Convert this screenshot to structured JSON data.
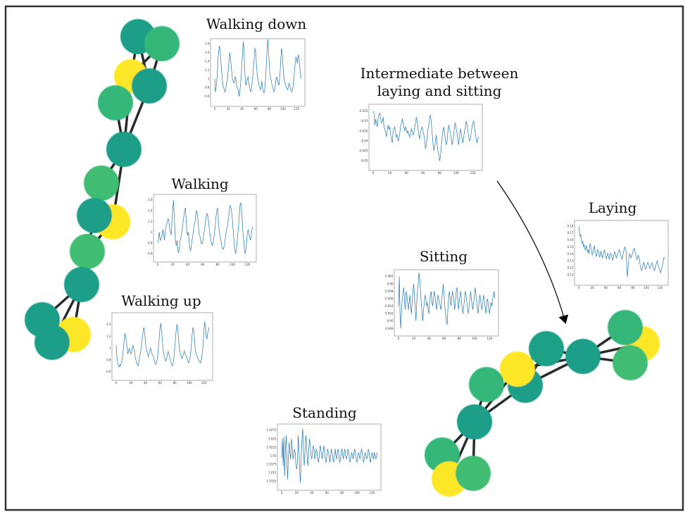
{
  "labels": {
    "walking_down": "Walking down",
    "walking": "Walking",
    "walking_up": "Walking up",
    "intermediate_1": "Intermediate between",
    "intermediate_2": "laying and sitting",
    "laying": "Laying",
    "sitting": "Sitting",
    "standing": "Standing"
  },
  "colors": {
    "frame": "#333333",
    "edge": "#2b2b2b",
    "series": "#1f77b4",
    "node_teal": "#1f9e89",
    "node_green": "#35b779",
    "node_light_green": "#3fbc73",
    "node_yellow": "#fde725"
  },
  "graphs": [
    {
      "name": "left-cluster",
      "nodes": [
        {
          "color": "yellow"
        },
        {
          "color": "teal"
        },
        {
          "color": "green"
        },
        {
          "color": "teal"
        },
        {
          "color": "green"
        },
        {
          "color": "teal"
        },
        {
          "color": "green"
        },
        {
          "color": "yellow"
        },
        {
          "color": "teal"
        },
        {
          "color": "green"
        },
        {
          "color": "teal"
        },
        {
          "color": "yellow"
        },
        {
          "color": "teal"
        },
        {
          "color": "teal"
        }
      ]
    },
    {
      "name": "right-cluster",
      "nodes": [
        {
          "color": "yellow"
        },
        {
          "color": "green"
        },
        {
          "color": "green"
        },
        {
          "color": "teal"
        },
        {
          "color": "teal"
        },
        {
          "color": "teal"
        },
        {
          "color": "yellow"
        },
        {
          "color": "green"
        },
        {
          "color": "teal"
        },
        {
          "color": "green"
        },
        {
          "color": "yellow"
        },
        {
          "color": "green"
        }
      ]
    }
  ],
  "chart_data": [
    {
      "type": "line",
      "name": "Walking down",
      "xticks": [
        0,
        20,
        40,
        60,
        80,
        100,
        120
      ],
      "yticks": [
        0.6,
        0.8,
        1.0,
        1.2,
        1.4,
        1.6,
        1.8
      ],
      "xlim": [
        0,
        128
      ],
      "ylim": [
        0.5,
        1.85
      ],
      "y": [
        1.0,
        0.7,
        0.8,
        0.95,
        1.2,
        1.5,
        1.65,
        1.75,
        1.6,
        1.4,
        1.2,
        1.0,
        0.85,
        0.8,
        0.75,
        0.7,
        0.75,
        0.85,
        0.95,
        1.05,
        1.25,
        1.45,
        1.6,
        1.5,
        1.3,
        1.15,
        1.0,
        0.95,
        0.9,
        0.95,
        1.05,
        1.0,
        0.85,
        0.8,
        0.78,
        0.65,
        0.6,
        0.75,
        0.9,
        1.1,
        1.4,
        1.65,
        1.85,
        1.6,
        1.2,
        0.9,
        0.85,
        0.95,
        1.0,
        1.05,
        0.9,
        0.8,
        0.75,
        0.7,
        0.8,
        0.95,
        1.1,
        1.3,
        1.5,
        1.7,
        1.6,
        1.35,
        1.15,
        1.0,
        0.95,
        0.85,
        0.8,
        0.75,
        0.82,
        0.95,
        0.8,
        0.72,
        0.68,
        0.7,
        0.9,
        1.15,
        1.45,
        1.75,
        1.9,
        1.6,
        1.3,
        1.1,
        1.0,
        0.95,
        0.85,
        0.8,
        0.75,
        0.7,
        0.78,
        0.88,
        1.0,
        1.05,
        0.95,
        0.9,
        0.85,
        1.0,
        1.2,
        1.5,
        1.7,
        1.55,
        1.3,
        1.1,
        0.95,
        0.9,
        0.85,
        0.8,
        0.78,
        0.75,
        0.82,
        0.9,
        0.85,
        0.78,
        0.72,
        0.7,
        0.75,
        0.85,
        1.0,
        1.2,
        1.35,
        1.5,
        1.45,
        1.35,
        1.5,
        1.55,
        1.4,
        1.2,
        1.05,
        1.0
      ]
    },
    {
      "type": "line",
      "name": "Walking",
      "xticks": [
        0,
        20,
        40,
        60,
        80,
        100,
        120
      ],
      "yticks": [
        0.6,
        0.8,
        1.0,
        1.2,
        1.4,
        1.6
      ],
      "xlim": [
        0,
        128
      ],
      "ylim": [
        0.55,
        1.65
      ],
      "y": [
        0.8,
        0.85,
        1.0,
        0.9,
        0.85,
        0.9,
        0.95,
        1.05,
        0.95,
        0.85,
        1.0,
        1.1,
        1.15,
        1.2,
        1.25,
        1.2,
        1.05,
        1.0,
        0.95,
        1.2,
        1.4,
        1.6,
        1.35,
        1.0,
        0.8,
        0.75,
        0.85,
        0.65,
        0.62,
        0.7,
        0.85,
        0.9,
        1.0,
        1.05,
        1.2,
        1.3,
        1.4,
        1.45,
        1.25,
        1.0,
        0.95,
        1.0,
        0.8,
        0.7,
        0.65,
        0.75,
        0.85,
        0.95,
        1.05,
        1.15,
        1.2,
        1.35,
        1.4,
        1.35,
        1.2,
        1.0,
        0.95,
        0.9,
        0.8,
        0.78,
        0.82,
        0.9,
        1.0,
        1.1,
        1.2,
        1.3,
        1.35,
        1.3,
        1.2,
        1.05,
        0.95,
        0.85,
        0.78,
        0.75,
        0.8,
        0.9,
        1.0,
        1.15,
        1.3,
        1.4,
        1.45,
        1.25,
        1.05,
        0.95,
        0.9,
        0.8,
        0.72,
        0.68,
        0.7,
        0.75,
        0.85,
        0.95,
        1.05,
        1.1,
        1.2,
        1.3,
        1.45,
        1.5,
        1.45,
        1.35,
        1.2,
        1.0,
        0.85,
        0.7,
        0.6,
        0.65,
        0.8,
        0.95,
        1.1,
        1.3,
        1.5,
        1.55,
        1.45,
        1.2,
        1.0,
        0.85,
        0.65,
        0.6,
        0.7,
        0.85,
        1.0,
        1.05,
        0.95,
        0.9,
        0.85,
        0.95,
        1.05,
        1.1
      ]
    },
    {
      "type": "line",
      "name": "Walking up",
      "xticks": [
        0,
        20,
        40,
        60,
        80,
        100,
        120
      ],
      "yticks": [
        0.6,
        0.8,
        1.0,
        1.2,
        1.4
      ],
      "xlim": [
        0,
        128
      ],
      "ylim": [
        0.55,
        1.55
      ],
      "y": [
        1.05,
        0.85,
        0.75,
        0.7,
        0.68,
        0.72,
        0.7,
        0.75,
        0.8,
        0.9,
        1.0,
        1.15,
        1.25,
        1.2,
        1.1,
        1.0,
        0.9,
        0.95,
        1.0,
        0.95,
        0.9,
        0.92,
        1.0,
        1.05,
        1.0,
        0.95,
        0.85,
        0.8,
        0.75,
        0.72,
        0.7,
        0.78,
        0.85,
        0.9,
        1.0,
        1.1,
        1.2,
        1.3,
        1.35,
        1.25,
        1.1,
        1.0,
        0.95,
        0.9,
        0.85,
        0.9,
        0.95,
        1.0,
        0.95,
        0.9,
        0.88,
        0.85,
        0.8,
        0.75,
        0.72,
        0.75,
        0.8,
        0.9,
        1.05,
        1.2,
        1.35,
        1.42,
        1.3,
        1.15,
        1.0,
        0.9,
        0.85,
        0.8,
        0.78,
        0.82,
        0.9,
        0.95,
        0.9,
        0.85,
        0.8,
        0.75,
        0.72,
        0.7,
        0.75,
        0.85,
        1.0,
        1.15,
        1.3,
        1.4,
        1.35,
        1.2,
        1.05,
        0.95,
        0.9,
        0.85,
        0.82,
        0.85,
        0.9,
        0.95,
        0.92,
        0.88,
        0.85,
        0.82,
        0.78,
        0.75,
        0.78,
        0.85,
        0.95,
        1.1,
        1.25,
        1.35,
        1.3,
        1.15,
        1.0,
        0.92,
        0.88,
        0.85,
        0.82,
        0.8,
        0.78,
        0.75,
        0.78,
        0.85,
        0.95,
        1.1,
        1.3,
        1.45,
        1.35,
        1.2,
        1.15,
        1.25,
        1.3,
        1.35
      ]
    },
    {
      "type": "line",
      "name": "Intermediate between laying and sitting",
      "xticks": [
        0,
        20,
        40,
        60,
        80,
        100,
        120
      ],
      "yticks": [
        -0.05,
        -0.045,
        -0.04,
        -0.035,
        -0.03,
        -0.025
      ],
      "xlim": [
        0,
        128
      ],
      "ylim": [
        -0.052,
        -0.023
      ],
      "y": [
        -0.025,
        -0.026,
        -0.032,
        -0.029,
        -0.031,
        -0.033,
        -0.028,
        -0.027,
        -0.026,
        -0.029,
        -0.031,
        -0.03,
        -0.028,
        -0.033,
        -0.034,
        -0.036,
        -0.038,
        -0.035,
        -0.032,
        -0.034,
        -0.033,
        -0.037,
        -0.039,
        -0.041,
        -0.035,
        -0.034,
        -0.033,
        -0.036,
        -0.038,
        -0.037,
        -0.04,
        -0.039,
        -0.036,
        -0.033,
        -0.031,
        -0.029,
        -0.03,
        -0.033,
        -0.035,
        -0.033,
        -0.034,
        -0.036,
        -0.035,
        -0.037,
        -0.038,
        -0.036,
        -0.034,
        -0.035,
        -0.037,
        -0.036,
        -0.033,
        -0.031,
        -0.028,
        -0.03,
        -0.034,
        -0.037,
        -0.039,
        -0.036,
        -0.034,
        -0.033,
        -0.035,
        -0.037,
        -0.04,
        -0.044,
        -0.042,
        -0.038,
        -0.034,
        -0.032,
        -0.028,
        -0.027,
        -0.031,
        -0.036,
        -0.041,
        -0.045,
        -0.043,
        -0.04,
        -0.037,
        -0.042,
        -0.045,
        -0.047,
        -0.05,
        -0.048,
        -0.043,
        -0.038,
        -0.035,
        -0.033,
        -0.036,
        -0.04,
        -0.042,
        -0.04,
        -0.035,
        -0.032,
        -0.034,
        -0.036,
        -0.039,
        -0.042,
        -0.04,
        -0.037,
        -0.032,
        -0.031,
        -0.034,
        -0.036,
        -0.04,
        -0.042,
        -0.037,
        -0.034,
        -0.036,
        -0.039,
        -0.041,
        -0.038,
        -0.035,
        -0.033,
        -0.03,
        -0.032,
        -0.035,
        -0.038,
        -0.04,
        -0.039,
        -0.036,
        -0.033,
        -0.031,
        -0.03,
        -0.033,
        -0.036,
        -0.039,
        -0.041,
        -0.039,
        -0.038
      ]
    },
    {
      "type": "line",
      "name": "Laying",
      "xticks": [
        0,
        20,
        40,
        60,
        80,
        100,
        120
      ],
      "yticks": [
        0.11,
        0.12,
        0.13,
        0.14,
        0.15,
        0.16,
        0.17,
        0.18
      ],
      "xlim": [
        0,
        128
      ],
      "ylim": [
        0.103,
        0.184
      ],
      "y": [
        0.18,
        0.172,
        0.165,
        0.168,
        0.16,
        0.155,
        0.158,
        0.15,
        0.153,
        0.148,
        0.145,
        0.152,
        0.149,
        0.143,
        0.146,
        0.14,
        0.15,
        0.155,
        0.148,
        0.144,
        0.138,
        0.142,
        0.147,
        0.152,
        0.145,
        0.14,
        0.136,
        0.141,
        0.146,
        0.144,
        0.139,
        0.135,
        0.14,
        0.144,
        0.138,
        0.134,
        0.137,
        0.142,
        0.146,
        0.141,
        0.136,
        0.133,
        0.138,
        0.141,
        0.136,
        0.132,
        0.137,
        0.141,
        0.139,
        0.135,
        0.131,
        0.134,
        0.139,
        0.143,
        0.14,
        0.136,
        0.134,
        0.138,
        0.141,
        0.144,
        0.146,
        0.142,
        0.138,
        0.135,
        0.132,
        0.137,
        0.142,
        0.146,
        0.15,
        0.148,
        0.143,
        0.12,
        0.107,
        0.12,
        0.135,
        0.14,
        0.138,
        0.134,
        0.136,
        0.14,
        0.143,
        0.145,
        0.148,
        0.144,
        0.14,
        0.136,
        0.132,
        0.134,
        0.138,
        0.135,
        0.13,
        0.122,
        0.118,
        0.116,
        0.12,
        0.125,
        0.128,
        0.124,
        0.12,
        0.118,
        0.121,
        0.125,
        0.128,
        0.126,
        0.122,
        0.119,
        0.121,
        0.124,
        0.127,
        0.125,
        0.122,
        0.118,
        0.116,
        0.12,
        0.124,
        0.127,
        0.13,
        0.126,
        0.122,
        0.119,
        0.115,
        0.113,
        0.117,
        0.121,
        0.125,
        0.13,
        0.135,
        0.133
      ]
    },
    {
      "type": "line",
      "name": "Sitting",
      "xticks": [
        0,
        20,
        40,
        60,
        80,
        100,
        120
      ],
      "yticks": [
        0.948,
        0.95,
        0.952,
        0.954,
        0.956,
        0.958,
        0.96,
        0.962
      ],
      "xlim": [
        0,
        128
      ],
      "ylim": [
        0.9475,
        0.963
      ],
      "y": [
        0.954,
        0.962,
        0.952,
        0.948,
        0.953,
        0.956,
        0.958,
        0.959,
        0.955,
        0.953,
        0.958,
        0.957,
        0.955,
        0.953,
        0.955,
        0.957,
        0.954,
        0.952,
        0.955,
        0.958,
        0.96,
        0.957,
        0.953,
        0.95,
        0.955,
        0.958,
        0.96,
        0.963,
        0.961,
        0.958,
        0.955,
        0.952,
        0.95,
        0.953,
        0.955,
        0.957,
        0.956,
        0.954,
        0.955,
        0.953,
        0.952,
        0.955,
        0.957,
        0.958,
        0.955,
        0.954,
        0.956,
        0.958,
        0.957,
        0.955,
        0.953,
        0.955,
        0.957,
        0.956,
        0.955,
        0.954,
        0.953,
        0.956,
        0.958,
        0.96,
        0.957,
        0.954,
        0.952,
        0.95,
        0.949,
        0.953,
        0.956,
        0.958,
        0.956,
        0.954,
        0.956,
        0.958,
        0.957,
        0.955,
        0.953,
        0.955,
        0.958,
        0.959,
        0.956,
        0.953,
        0.955,
        0.957,
        0.958,
        0.955,
        0.953,
        0.952,
        0.954,
        0.956,
        0.958,
        0.957,
        0.955,
        0.953,
        0.952,
        0.954,
        0.956,
        0.958,
        0.956,
        0.954,
        0.953,
        0.955,
        0.957,
        0.959,
        0.957,
        0.955,
        0.953,
        0.952,
        0.955,
        0.957,
        0.956,
        0.954,
        0.953,
        0.955,
        0.957,
        0.956,
        0.954,
        0.952,
        0.954,
        0.956,
        0.955,
        0.953,
        0.952,
        0.954,
        0.955,
        0.954,
        0.956,
        0.957,
        0.958,
        0.956
      ]
    },
    {
      "type": "line",
      "name": "Standing",
      "xticks": [
        0,
        20,
        40,
        60,
        80,
        100,
        120
      ],
      "yticks": [
        1.0125,
        1.015,
        1.0175,
        1.02,
        1.0225,
        1.025,
        1.0275
      ],
      "xlim": [
        0,
        128
      ],
      "ylim": [
        1.0115,
        1.0285
      ],
      "y": [
        1.0195,
        1.025,
        1.017,
        1.0255,
        1.014,
        1.022,
        1.026,
        1.018,
        1.013,
        1.02,
        1.024,
        1.021,
        1.019,
        1.025,
        1.023,
        1.019,
        1.02,
        1.022,
        1.021,
        1.017,
        1.016,
        1.018,
        1.026,
        1.022,
        1.015,
        1.012,
        1.02,
        1.025,
        1.028,
        1.021,
        1.017,
        1.021,
        1.026,
        1.024,
        1.019,
        1.017,
        1.022,
        1.025,
        1.023,
        1.02,
        1.019,
        1.021,
        1.023,
        1.022,
        1.019,
        1.02,
        1.022,
        1.021,
        1.019,
        1.018,
        1.02,
        1.023,
        1.022,
        1.02,
        1.019,
        1.021,
        1.023,
        1.021,
        1.019,
        1.018,
        1.02,
        1.022,
        1.021,
        1.02,
        1.018,
        1.02,
        1.022,
        1.021,
        1.019,
        1.018,
        1.02,
        1.022,
        1.02,
        1.019,
        1.021,
        1.022,
        1.02,
        1.018,
        1.019,
        1.021,
        1.022,
        1.02,
        1.019,
        1.021,
        1.022,
        1.02,
        1.019,
        1.02,
        1.022,
        1.021,
        1.019,
        1.018,
        1.02,
        1.021,
        1.02,
        1.019,
        1.021,
        1.022,
        1.02,
        1.019,
        1.018,
        1.02,
        1.021,
        1.02,
        1.019,
        1.021,
        1.022,
        1.021,
        1.019,
        1.018,
        1.02,
        1.021,
        1.02,
        1.019,
        1.02,
        1.022,
        1.021,
        1.019,
        1.018,
        1.02,
        1.021,
        1.02,
        1.019,
        1.021,
        1.02,
        1.019,
        1.02,
        1.021
      ]
    }
  ]
}
